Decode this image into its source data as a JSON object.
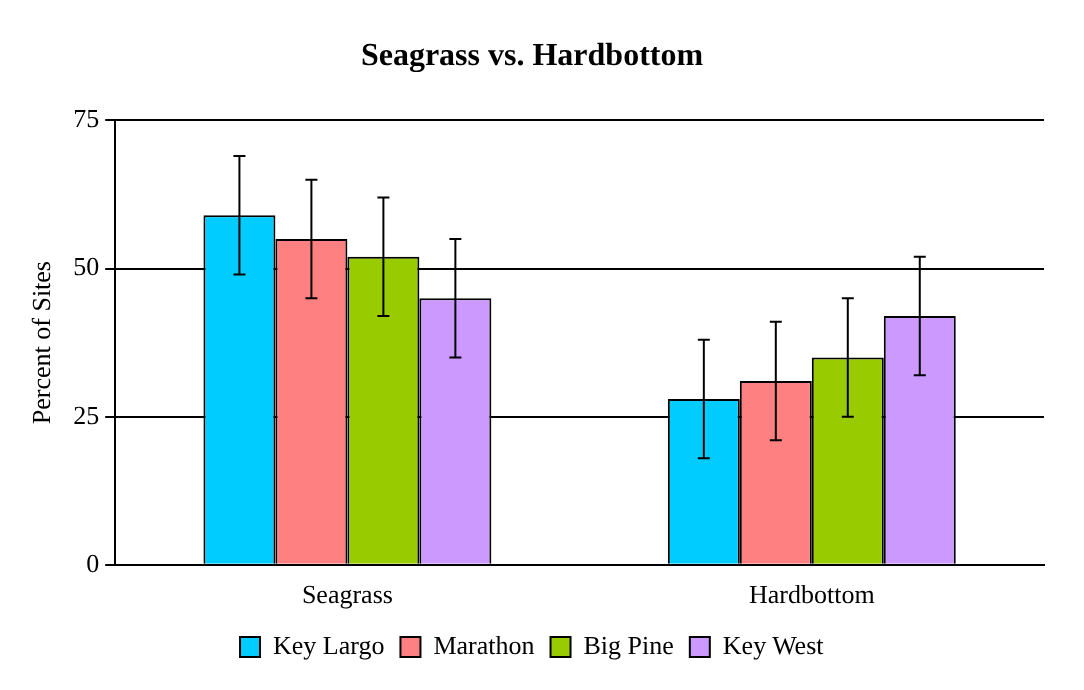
{
  "chart_data": {
    "type": "bar",
    "title": "Seagrass vs. Hardbottom",
    "ylabel": "Percent of Sites",
    "categories": [
      "Seagrass",
      "Hardbottom"
    ],
    "series": [
      {
        "name": "Key Largo",
        "color": "#00ccff",
        "values": [
          59,
          28
        ],
        "errors": [
          10,
          10
        ]
      },
      {
        "name": "Marathon",
        "color": "#ff8080",
        "values": [
          55,
          31
        ],
        "errors": [
          10,
          10
        ]
      },
      {
        "name": "Big Pine",
        "color": "#99cc00",
        "values": [
          52,
          35
        ],
        "errors": [
          10,
          10
        ]
      },
      {
        "name": "Key West",
        "color": "#cc99ff",
        "values": [
          45,
          42
        ],
        "errors": [
          10,
          10
        ]
      }
    ],
    "ylim": [
      0,
      75
    ],
    "yticks": [
      0,
      25,
      50,
      75
    ],
    "grid": "y",
    "legend": "bottom"
  }
}
